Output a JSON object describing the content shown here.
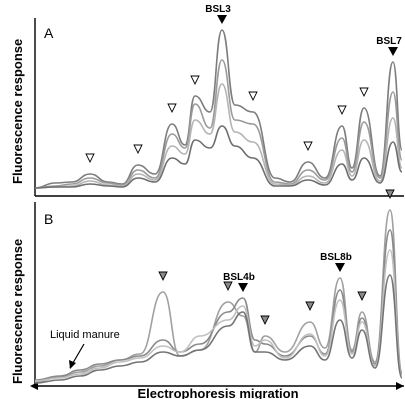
{
  "chart_data": [
    {
      "type": "line",
      "panel_label": "A",
      "ylabel": "Fluorescence response",
      "named_markers": [
        {
          "label": "BSL3",
          "x": 222,
          "style": "filled"
        },
        {
          "label": "BSL7",
          "x": 393,
          "style": "filled"
        }
      ],
      "peak_markers": {
        "style": "open",
        "x": [
          90,
          138,
          172,
          195,
          253,
          308,
          342,
          364
        ]
      },
      "series": [
        {
          "color": "#7d7d7d",
          "points": [
            [
              35,
              188
            ],
            [
              55,
              183
            ],
            [
              72,
              182
            ],
            [
              90,
              174
            ],
            [
              108,
              182
            ],
            [
              122,
              184
            ],
            [
              138,
              165
            ],
            [
              155,
              174
            ],
            [
              172,
              124
            ],
            [
              185,
              145
            ],
            [
              195,
              96
            ],
            [
              210,
              112
            ],
            [
              222,
              30
            ],
            [
              235,
              105
            ],
            [
              253,
              112
            ],
            [
              275,
              178
            ],
            [
              290,
              182
            ],
            [
              308,
              162
            ],
            [
              325,
              178
            ],
            [
              342,
              126
            ],
            [
              352,
              168
            ],
            [
              364,
              108
            ],
            [
              380,
              176
            ],
            [
              393,
              62
            ],
            [
              402,
              150
            ]
          ]
        },
        {
          "color": "#9a9a9a",
          "points": [
            [
              35,
              188
            ],
            [
              55,
              186
            ],
            [
              72,
              184
            ],
            [
              90,
              178
            ],
            [
              108,
              183
            ],
            [
              122,
              185
            ],
            [
              138,
              170
            ],
            [
              155,
              178
            ],
            [
              172,
              134
            ],
            [
              185,
              148
            ],
            [
              195,
              104
            ],
            [
              210,
              128
            ],
            [
              222,
              60
            ],
            [
              235,
              120
            ],
            [
              253,
              124
            ],
            [
              275,
              182
            ],
            [
              290,
              184
            ],
            [
              308,
              170
            ],
            [
              325,
              180
            ],
            [
              342,
              138
            ],
            [
              352,
              172
            ],
            [
              364,
              122
            ],
            [
              380,
              178
            ],
            [
              393,
              92
            ],
            [
              402,
              160
            ]
          ]
        },
        {
          "color": "#b4b4b4",
          "points": [
            [
              35,
              188
            ],
            [
              55,
              187
            ],
            [
              72,
              186
            ],
            [
              90,
              181
            ],
            [
              108,
              185
            ],
            [
              122,
              186
            ],
            [
              138,
              174
            ],
            [
              155,
              180
            ],
            [
              172,
              146
            ],
            [
              185,
              154
            ],
            [
              195,
              120
            ],
            [
              210,
              134
            ],
            [
              222,
              84
            ],
            [
              235,
              132
            ],
            [
              253,
              142
            ],
            [
              275,
              184
            ],
            [
              290,
              185
            ],
            [
              308,
              176
            ],
            [
              325,
              183
            ],
            [
              342,
              150
            ],
            [
              352,
              176
            ],
            [
              364,
              140
            ],
            [
              380,
              181
            ],
            [
              393,
              118
            ],
            [
              402,
              168
            ]
          ]
        },
        {
          "color": "#6e6e6e",
          "points": [
            [
              35,
              188
            ],
            [
              55,
              187
            ],
            [
              72,
              187
            ],
            [
              90,
              184
            ],
            [
              108,
              186
            ],
            [
              122,
              187
            ],
            [
              138,
              178
            ],
            [
              155,
              182
            ],
            [
              172,
              158
            ],
            [
              185,
              164
            ],
            [
              195,
              140
            ],
            [
              210,
              148
            ],
            [
              222,
              126
            ],
            [
              235,
              146
            ],
            [
              253,
              158
            ],
            [
              275,
              186
            ],
            [
              290,
              186
            ],
            [
              308,
              180
            ],
            [
              325,
              185
            ],
            [
              342,
              164
            ],
            [
              352,
              180
            ],
            [
              364,
              158
            ],
            [
              380,
              183
            ],
            [
              393,
              142
            ],
            [
              402,
              172
            ]
          ]
        }
      ]
    },
    {
      "type": "line",
      "panel_label": "B",
      "ylabel": "Fluorescence response",
      "xlabel": "Electrophoresis migration",
      "named_markers": [
        {
          "label": "BSL4b",
          "x": 243,
          "style": "filled"
        },
        {
          "label": "BSL8b",
          "x": 340,
          "style": "filled"
        }
      ],
      "peak_markers": {
        "style": "grey",
        "x": [
          163,
          228,
          265,
          310,
          362,
          390
        ]
      },
      "annotation": {
        "text": "Liquid manure",
        "arrow_to_x": 70
      },
      "series": [
        {
          "color": "#a0a0a0",
          "points": [
            [
              35,
              382
            ],
            [
              60,
              377
            ],
            [
              80,
              372
            ],
            [
              100,
              366
            ],
            [
              120,
              360
            ],
            [
              140,
              354
            ],
            [
              163,
              292
            ],
            [
              180,
              356
            ],
            [
              200,
              350
            ],
            [
              228,
              302
            ],
            [
              243,
              316
            ],
            [
              255,
              352
            ],
            [
              265,
              336
            ],
            [
              285,
              352
            ],
            [
              310,
              322
            ],
            [
              325,
              348
            ],
            [
              340,
              278
            ],
            [
              352,
              350
            ],
            [
              362,
              312
            ],
            [
              375,
              362
            ],
            [
              390,
              210
            ],
            [
              402,
              372
            ]
          ]
        },
        {
          "color": "#8a8a8a",
          "points": [
            [
              35,
              380
            ],
            [
              60,
              376
            ],
            [
              80,
              370
            ],
            [
              100,
              364
            ],
            [
              120,
              360
            ],
            [
              140,
              356
            ],
            [
              163,
              340
            ],
            [
              180,
              352
            ],
            [
              200,
              344
            ],
            [
              228,
              312
            ],
            [
              243,
              298
            ],
            [
              255,
              340
            ],
            [
              265,
              344
            ],
            [
              285,
              356
            ],
            [
              310,
              336
            ],
            [
              325,
              354
            ],
            [
              340,
              290
            ],
            [
              352,
              352
            ],
            [
              362,
              318
            ],
            [
              375,
              364
            ],
            [
              390,
              230
            ],
            [
              402,
              374
            ]
          ]
        },
        {
          "color": "#c0c0c0",
          "points": [
            [
              35,
              381
            ],
            [
              60,
              378
            ],
            [
              80,
              374
            ],
            [
              100,
              368
            ],
            [
              120,
              362
            ],
            [
              140,
              358
            ],
            [
              163,
              346
            ],
            [
              180,
              352
            ],
            [
              200,
              336
            ],
            [
              228,
              320
            ],
            [
              243,
              306
            ],
            [
              255,
              346
            ],
            [
              265,
              340
            ],
            [
              285,
              358
            ],
            [
              310,
              334
            ],
            [
              325,
              356
            ],
            [
              340,
              300
            ],
            [
              352,
              354
            ],
            [
              362,
              322
            ],
            [
              375,
              366
            ],
            [
              390,
              250
            ],
            [
              402,
              376
            ]
          ]
        },
        {
          "color": "#747474",
          "points": [
            [
              35,
              383
            ],
            [
              60,
              380
            ],
            [
              80,
              376
            ],
            [
              100,
              370
            ],
            [
              120,
              366
            ],
            [
              140,
              362
            ],
            [
              163,
              352
            ],
            [
              180,
              356
            ],
            [
              200,
              350
            ],
            [
              228,
              326
            ],
            [
              243,
              312
            ],
            [
              255,
              352
            ],
            [
              265,
              352
            ],
            [
              285,
              360
            ],
            [
              310,
              346
            ],
            [
              325,
              360
            ],
            [
              340,
              320
            ],
            [
              352,
              358
            ],
            [
              362,
              330
            ],
            [
              375,
              368
            ],
            [
              390,
              275
            ],
            [
              402,
              378
            ]
          ]
        }
      ]
    }
  ]
}
